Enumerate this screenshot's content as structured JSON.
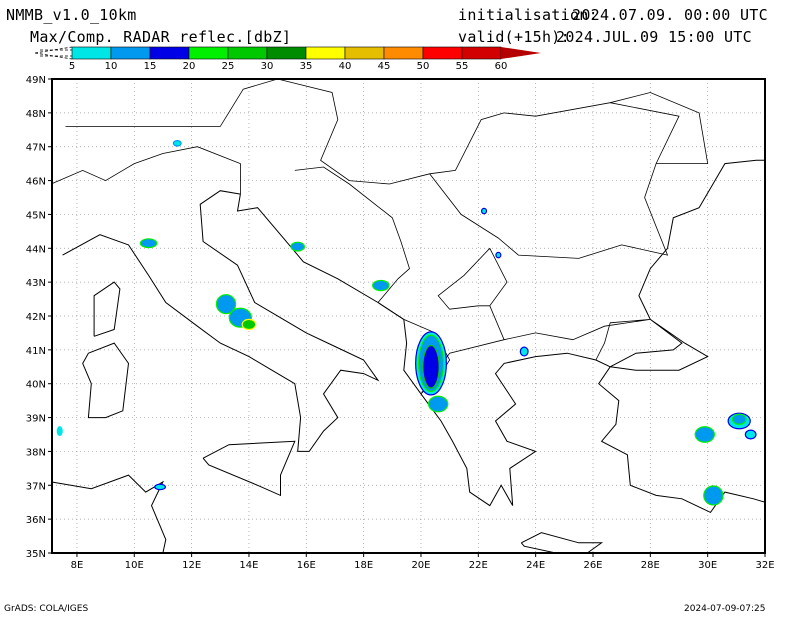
{
  "header": {
    "model": "NMMB_v1.0_10km",
    "field": "Max/Comp. RADAR reflec.[dbZ]",
    "init_label": "initialisation:",
    "init_value": "2024.07.09. 00:00 UTC",
    "valid_label": "valid(+15h):",
    "valid_value": "2024.JUL.09 15:00 UTC"
  },
  "colorbar": {
    "labels": [
      "5",
      "10",
      "15",
      "20",
      "25",
      "30",
      "35",
      "40",
      "45",
      "50",
      "55",
      "60"
    ],
    "colors": [
      "#00e6e6",
      "#0099f0",
      "#0000e6",
      "#00f000",
      "#00c800",
      "#008c00",
      "#ffff00",
      "#e6be00",
      "#ff8c00",
      "#ff0000",
      "#d20000",
      "#b40000"
    ]
  },
  "map": {
    "lat_labels": [
      "35N",
      "36N",
      "37N",
      "38N",
      "39N",
      "40N",
      "41N",
      "42N",
      "43N",
      "44N",
      "45N",
      "46N",
      "47N",
      "48N",
      "49N"
    ],
    "lon_labels": [
      "8E",
      "10E",
      "12E",
      "14E",
      "16E",
      "18E",
      "20E",
      "22E",
      "24E",
      "26E",
      "28E",
      "30E",
      "32E"
    ],
    "lat_values": [
      35,
      36,
      37,
      38,
      39,
      40,
      41,
      42,
      43,
      44,
      45,
      46,
      47,
      48,
      49
    ],
    "lon_values": [
      8,
      10,
      12,
      14,
      16,
      18,
      20,
      22,
      24,
      26,
      28,
      30,
      32
    ]
  },
  "footer": {
    "left": "GrADS: COLA/IGES",
    "right": "2024-07-09-07:25"
  }
}
